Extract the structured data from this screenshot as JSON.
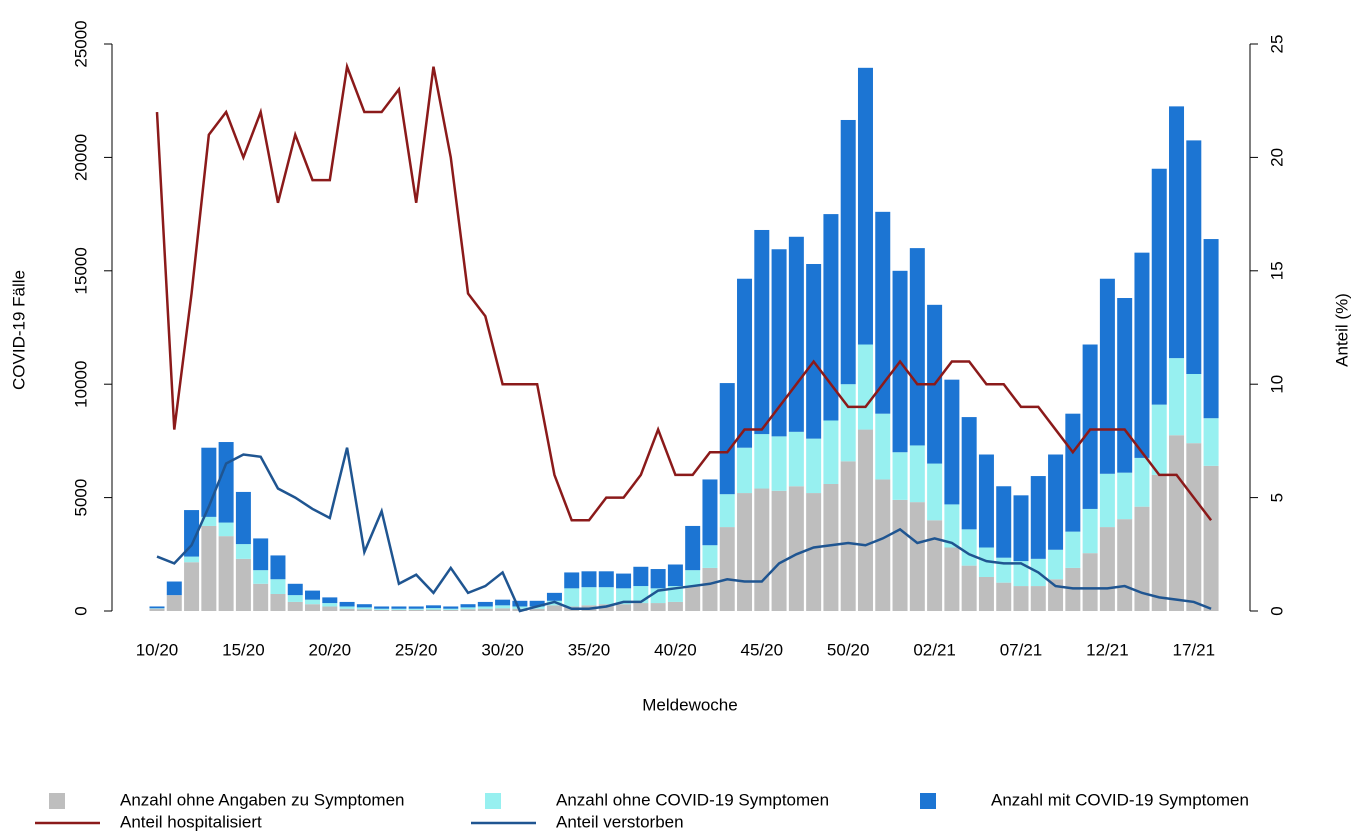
{
  "chart_data": {
    "type": "bar",
    "stacked": true,
    "x_label": "Meldewoche",
    "y_label": "COVID-19 Fälle",
    "y2_label": "Anteil (%)",
    "categories": [
      "10/20",
      null,
      null,
      null,
      null,
      "15/20",
      null,
      null,
      null,
      null,
      "20/20",
      null,
      null,
      null,
      null,
      "25/20",
      null,
      null,
      null,
      null,
      "30/20",
      null,
      null,
      null,
      null,
      "35/20",
      null,
      null,
      null,
      null,
      "40/20",
      null,
      null,
      null,
      null,
      "45/20",
      null,
      null,
      null,
      null,
      "50/20",
      null,
      null,
      null,
      null,
      "02/21",
      null,
      null,
      null,
      null,
      "07/21",
      null,
      null,
      null,
      null,
      "12/21",
      null,
      null,
      null,
      null,
      "17/21",
      null
    ],
    "ylim": [
      0,
      25000
    ],
    "yticks": [
      0,
      5000,
      10000,
      15000,
      20000,
      25000
    ],
    "y2lim": [
      0,
      25
    ],
    "y2ticks": [
      0,
      5,
      10,
      15,
      20,
      25
    ],
    "series": [
      {
        "name": "Anzahl ohne Angaben zu Symptomen",
        "type": "bar",
        "color": "#bebebe",
        "values": [
          100,
          700,
          2150,
          3750,
          3300,
          2300,
          1200,
          750,
          400,
          300,
          200,
          100,
          80,
          50,
          50,
          50,
          60,
          50,
          80,
          100,
          120,
          100,
          100,
          250,
          200,
          250,
          300,
          300,
          350,
          350,
          400,
          1100,
          1900,
          3700,
          5200,
          5400,
          5300,
          5500,
          5200,
          5600,
          6600,
          8000,
          5800,
          4900,
          4800,
          4000,
          2800,
          2000,
          1500,
          1250,
          1100,
          1100,
          1400,
          1900,
          2550,
          3700,
          4050,
          4600,
          6000,
          7750,
          7400,
          6400
        ]
      },
      {
        "name": "Anzahl ohne COVID-19 Symptomen",
        "type": "bar",
        "color": "#97f0f0",
        "values": [
          20,
          0,
          250,
          400,
          600,
          650,
          600,
          650,
          300,
          200,
          150,
          100,
          80,
          50,
          50,
          50,
          70,
          50,
          80,
          100,
          130,
          100,
          100,
          200,
          800,
          800,
          750,
          700,
          750,
          650,
          700,
          700,
          1000,
          1450,
          2000,
          2400,
          2400,
          2400,
          2400,
          2800,
          3400,
          3750,
          2900,
          2100,
          2500,
          2500,
          1900,
          1600,
          1300,
          1100,
          1100,
          1200,
          1300,
          1600,
          1950,
          2350,
          2050,
          2150,
          3100,
          3400,
          3050,
          2100
        ]
      },
      {
        "name": "Anzahl mit COVID-19 Symptomen",
        "type": "bar",
        "color": "#1c75d3",
        "values": [
          80,
          600,
          2050,
          3050,
          3550,
          2300,
          1400,
          1050,
          500,
          400,
          250,
          200,
          140,
          100,
          100,
          100,
          120,
          100,
          140,
          200,
          250,
          250,
          250,
          350,
          700,
          700,
          700,
          650,
          850,
          850,
          950,
          1950,
          2900,
          4900,
          7450,
          9000,
          8250,
          8600,
          7700,
          9100,
          11650,
          12200,
          8900,
          8000,
          8700,
          7000,
          5500,
          4950,
          4100,
          3150,
          2900,
          3650,
          4200,
          5200,
          7250,
          8600,
          7700,
          9050,
          10400,
          11100,
          10300,
          7900
        ]
      },
      {
        "name": "Anteil hospitalisiert",
        "type": "line",
        "axis": "y2",
        "color": "#8b1a1a",
        "values": [
          22,
          8,
          14,
          21,
          22,
          20,
          22,
          18,
          21,
          19,
          19,
          24,
          22,
          22,
          23,
          18,
          24,
          20,
          14,
          13,
          10,
          10,
          10,
          6,
          4,
          4,
          5,
          5,
          6,
          8,
          6,
          6,
          7,
          7,
          8,
          8,
          9,
          10,
          11,
          10,
          9,
          9,
          10,
          11,
          10,
          10,
          11,
          11,
          10,
          10,
          9,
          9,
          8,
          7,
          8,
          8,
          8,
          7,
          6,
          6,
          5,
          4
        ]
      },
      {
        "name": "Anteil verstorben",
        "type": "line",
        "axis": "y2",
        "color": "#1f5591",
        "values": [
          2.4,
          2.1,
          2.9,
          4.6,
          6.5,
          6.9,
          6.8,
          5.4,
          5.0,
          4.5,
          4.1,
          7.2,
          2.6,
          4.4,
          1.2,
          1.6,
          0.8,
          1.9,
          0.8,
          1.1,
          1.7,
          0.0,
          0.2,
          0.4,
          0.1,
          0.1,
          0.2,
          0.4,
          0.4,
          0.9,
          1.0,
          1.1,
          1.2,
          1.4,
          1.3,
          1.3,
          2.1,
          2.5,
          2.8,
          2.9,
          3.0,
          2.9,
          3.2,
          3.6,
          3.0,
          3.2,
          3.0,
          2.5,
          2.2,
          2.1,
          2.1,
          1.7,
          1.1,
          1.0,
          1.0,
          1.0,
          1.1,
          0.8,
          0.6,
          0.5,
          0.4,
          0.1
        ]
      }
    ]
  }
}
